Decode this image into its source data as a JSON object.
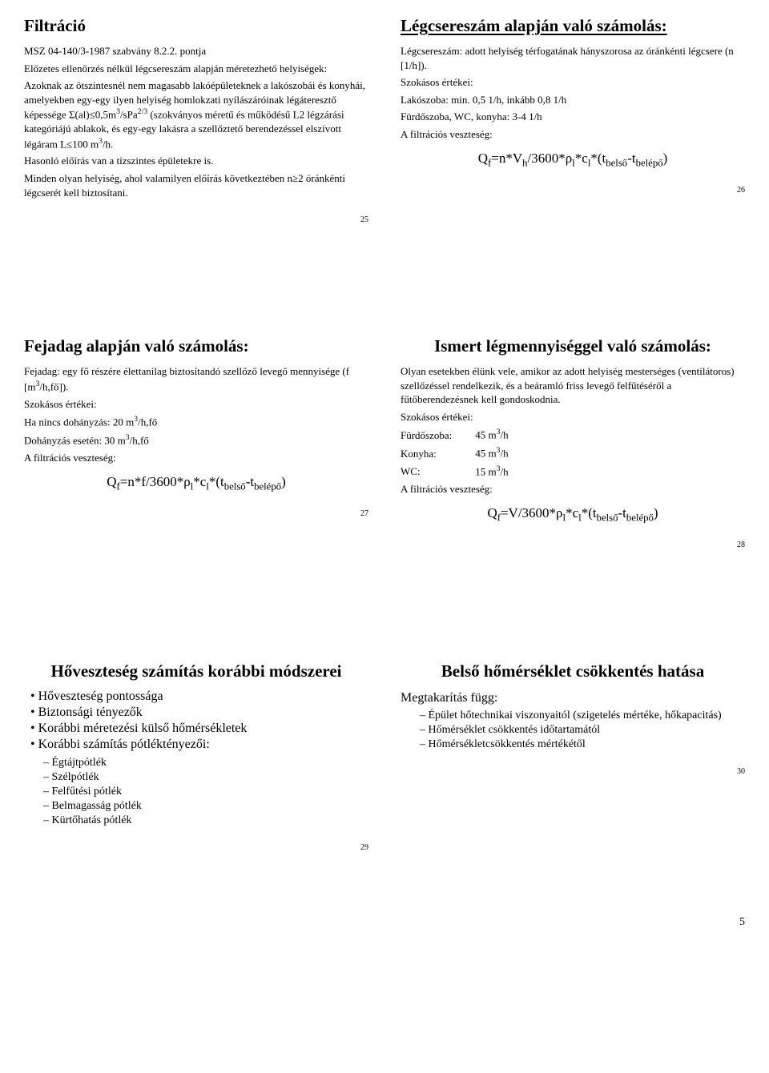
{
  "slide25": {
    "title": "Filtráció",
    "sub": "MSZ 04-140/3-1987 szabvány 8.2.2. pontja",
    "l1": "Előzetes ellenőrzés nélkül légcsereszám alapján méretezhető helyiségek:",
    "l2_pre": "Azoknak az ötszintesnél nem magasabb lakóépületeknek a lakószobái és konyhái, amelyekben egy-egy ilyen helyiség homlokzati nyílászáróinak légáteresztő képessége Σ(al)≤0,5m",
    "l2_sup": "3",
    "l2_mid": "/sPa",
    "l2_sup2": "2/3",
    "l2_post": " (szokványos méretű és működésű L2 légzárási kategóriájú ablakok, és egy-egy lakásra a szellőztető berendezéssel elszívott légáram L≤100 m",
    "l2_sup3": "3",
    "l2_end": "/h.",
    "l3": "Hasonló előírás van a tízszintes épületekre is.",
    "l4": "Minden olyan helyiség, ahol valamilyen előírás következtében n≥2 óránkénti légcserét kell biztosítani.",
    "num": "25"
  },
  "slide26": {
    "title": "Légcsereszám alapján való számolás:",
    "l1": "Légcsereszám: adott helyiség térfogatának hányszorosa az óránkénti légcsere (n [1/h]).",
    "l2": "Szokásos értékei:",
    "l3": "Lakószoba: min. 0,5 1/h, inkább 0,8 1/h",
    "l4": "Fürdőszoba, WC, konyha: 3-4 1/h",
    "l5": "A filtrációs veszteség:",
    "formula": "Q<sub>f</sub>=n*V<sub>h</sub>/3600*ρ<sub>l</sub>*c<sub>l</sub>*(t<sub>belső</sub>-t<sub>belépő</sub>)",
    "num": "26"
  },
  "slide27": {
    "title": "Fejadag alapján való számolás:",
    "l1_pre": "Fejadag: egy fő részére élettanilag biztosítandó szellőző levegő mennyisége (f [m",
    "l1_sup": "3",
    "l1_post": "/h,fő]).",
    "l2": "Szokásos értékei:",
    "l3_pre": "Ha nincs dohányzás: 20 m",
    "l3_sup": "3",
    "l3_post": "/h,fő",
    "l4_pre": "Dohányzás esetén:   30 m",
    "l4_sup": "3",
    "l4_post": "/h,fő",
    "l5": "A filtrációs veszteség:",
    "formula": "Q<sub>f</sub>=n*f/3600*ρ<sub>l</sub>*c<sub>l</sub>*(t<sub>belső</sub>-t<sub>belépő</sub>)",
    "num": "27"
  },
  "slide28": {
    "title": "Ismert légmennyiséggel való számolás:",
    "l1": "Olyan esetekben élünk vele, amikor az adott helyiség mesterséges (ventilátoros) szellőzéssel rendelkezik, és a beáramló friss levegő felfűtéséről a fűtőberendezésnek kell gondoskodnia.",
    "l2": "Szokásos értékei:",
    "r1a": "Fürdőszoba:",
    "r1b_pre": "45 m",
    "r1b_sup": "3",
    "r1b_post": "/h",
    "r2a": "Konyha:",
    "r2b_pre": "45 m",
    "r2b_sup": "3",
    "r2b_post": "/h",
    "r3a": "WC:",
    "r3b_pre": "15 m",
    "r3b_sup": "3",
    "r3b_post": "/h",
    "l5": "A filtrációs veszteség:",
    "formula": "Q<sub>f</sub>=V/3600*ρ<sub>l</sub>*c<sub>l</sub>*(t<sub>belső</sub>-t<sub>belépő</sub>)",
    "num": "28"
  },
  "slide29": {
    "title": "Hőveszteség számítás korábbi módszerei",
    "b1": "Hőveszteség pontossága",
    "b2": "Biztonsági tényezők",
    "b3": "Korábbi méretezési külső hőmérsékletek",
    "b4": "Korábbi számítás pótléktényezői:",
    "d1": "Égtájtpótlék",
    "d2": "Szélpótlék",
    "d3": "Felfűtési pótlék",
    "d4": "Belmagasság pótlék",
    "d5": "Kürtőhatás pótlék",
    "num": "29"
  },
  "slide30": {
    "title": "Belső hőmérséklet csökkentés hatása",
    "lead": "Megtakarítás függ:",
    "d1": "Épület hőtechnikai viszonyaitól (szigetelés mértéke, hőkapacitás)",
    "d2": "Hőmérséklet csökkentés időtartamától",
    "d3": "Hőmérsékletcsökkentés mértékétől",
    "num": "30"
  },
  "pagefoot": "5"
}
